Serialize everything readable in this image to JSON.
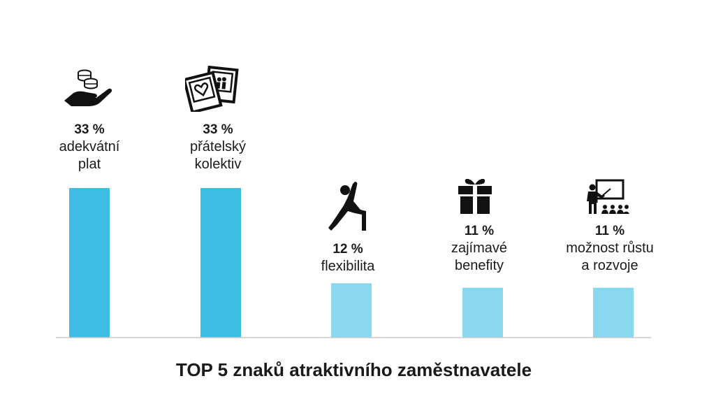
{
  "chart_data": {
    "type": "bar",
    "title": "TOP 5 znaků atraktivního zaměstnavatele",
    "categories": [
      "adekvátní\nplat",
      "přátelský\nkolektiv",
      "flexibilita",
      "zajímavé\nbenefity",
      "možnost růstu\na rozvoje"
    ],
    "values": [
      33,
      33,
      12,
      11,
      11
    ],
    "value_labels": [
      "33 %",
      "33 %",
      "12 %",
      "11 %",
      "11 %"
    ],
    "icons": [
      "coins-in-hand-icon",
      "photos-icon",
      "yoga-pose-icon",
      "gift-box-icon",
      "teacher-presentation-icon"
    ],
    "colors": [
      "#3dbde4",
      "#3dbde4",
      "#8ad8ef",
      "#8ad8ef",
      "#8ad8ef"
    ],
    "ylim": [
      0,
      33
    ],
    "xlabel": "",
    "ylabel": "",
    "grid": false,
    "legend": "none"
  }
}
